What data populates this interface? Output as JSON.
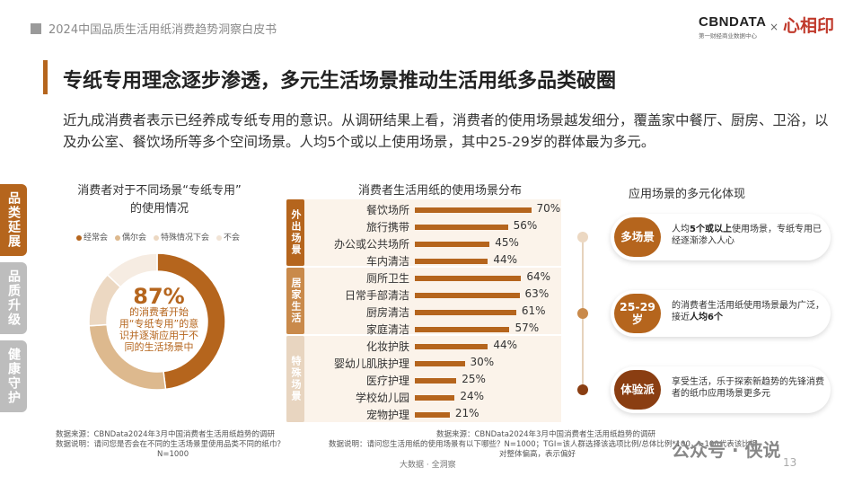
{
  "header": {
    "doc_title": "2024中国品质生活用纸消费趋势洞察白皮书",
    "brand": "CBNDATA",
    "brand_sub": "第一财经商业数据中心",
    "brand_sep": "×",
    "partner": "心相印"
  },
  "title": "专纸专用理念逐步渗透，多元生活场景推动生活用纸多品类破圈",
  "lead": "近九成消费者表示已经养成专纸专用的意识。从调研结果上看，消费者的使用场景越发细分，覆盖家中餐厅、厨房、卫浴，以及办公室、餐饮场所等多个空间场景。人均5个或以上使用场景，其中25-29岁的群体最为多元。",
  "side_tabs": [
    "品类延展",
    "品质升级",
    "健康守护"
  ],
  "colors": {
    "accent": "#b5651d",
    "accent_light": "#e8d5c0",
    "tab_inactive": "#bdbdbd"
  },
  "chart_data": [
    {
      "type": "pie",
      "title_line1": "消费者对于不同场景“专纸专用”",
      "title_line2": "的使用情况",
      "legend": [
        "经常会",
        "偶尔会",
        "特殊情况下会",
        "不会"
      ],
      "values": [
        48,
        26,
        13,
        13
      ],
      "colors": [
        "#b5651d",
        "#ddb98e",
        "#ecd8c2",
        "#f6ece2"
      ],
      "center_value": "87%",
      "center_text": "的消费者开始用“专纸专用”的意识并逐渐应用于不同的生活场景中",
      "note_line1": "数据来源：CBNData2024年3月中国消费者生活用纸趋势的调研",
      "note_line2": "数据说明：请问您是否会在不同的生活场景里使用品类不同的纸巾？",
      "note_line3": "N=1000"
    },
    {
      "type": "bar",
      "title": "消费者生活用纸的使用场景分布",
      "groups": [
        {
          "name": "外出场景",
          "categories": [
            "餐饮场所",
            "旅行携带",
            "办公或公共场所",
            "车内清洁"
          ],
          "values": [
            70,
            56,
            45,
            44
          ]
        },
        {
          "name": "居家生活",
          "categories": [
            "厕所卫生",
            "日常手部清洁",
            "厨房清洁",
            "家庭清洁"
          ],
          "values": [
            64,
            63,
            61,
            57
          ]
        },
        {
          "name": "特殊场景",
          "categories": [
            "化妆护肤",
            "婴幼儿肌肤护理",
            "医疗护理",
            "学校幼儿园",
            "宠物护理"
          ],
          "values": [
            44,
            30,
            25,
            24,
            21
          ]
        }
      ],
      "value_suffix": "%",
      "xlim": [
        0,
        100
      ],
      "note_line1": "数据来源：CBNData2024年3月中国消费者生活用纸趋势的调研",
      "note_line2": "数据说明：请问您生活用纸的使用场景有以下哪些？N=1000；TGI=该人群选择该选项比例/总体比例*100，>100代表该比相",
      "note_line3": "对整体偏高，表示偏好"
    }
  ],
  "right_panel": {
    "title": "应用场景的多元化体现",
    "items": [
      {
        "badge": "多场景",
        "text_pre": "人均",
        "text_bold": "5个或以上",
        "text_post": "使用场景，专纸专用已经逐渐渗入人心",
        "color": "#b5651d",
        "node": "#ecd8c2"
      },
      {
        "badge": "25-29岁",
        "text_pre": "的消费者生活用纸使用场景最为广泛，接近",
        "text_bold": "人均6个",
        "text_post": "",
        "color": "#b5651d",
        "node": "#c98a4b"
      },
      {
        "badge": "体验派",
        "text_pre": "享受生活，乐于探索新趋势的先锋消费者的纸巾应用场景更多元",
        "text_bold": "",
        "text_post": "",
        "color": "#8a3e12",
        "node": "#8a3e12"
      }
    ]
  },
  "footer": "大数据 · 全洞察",
  "page_number": "13",
  "watermark": "公众号 · 侠说"
}
